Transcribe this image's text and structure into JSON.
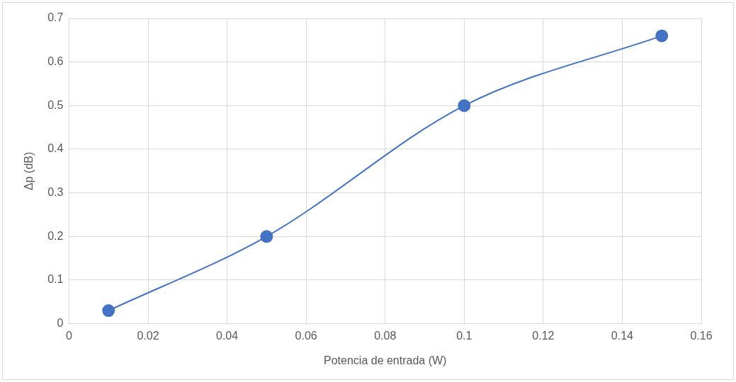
{
  "chart_data": {
    "type": "line",
    "xlabel": "Potencia de entrada (W)",
    "ylabel": "Δp (dB)",
    "x": [
      0.01,
      0.05,
      0.1,
      0.15
    ],
    "series": [
      {
        "color": "#4472c4",
        "values": [
          0.03,
          0.2,
          0.5,
          0.66
        ]
      }
    ],
    "xlim": [
      0,
      0.16
    ],
    "xticks": [
      0,
      0.02,
      0.04,
      0.06,
      0.08,
      0.1,
      0.12,
      0.14,
      0.16
    ],
    "ylim": [
      0,
      0.7
    ],
    "yticks": [
      0,
      0.1,
      0.2,
      0.3,
      0.4,
      0.5,
      0.6,
      0.7
    ],
    "grid": true,
    "marker": "circle",
    "line_style": "solid",
    "legend": false
  }
}
